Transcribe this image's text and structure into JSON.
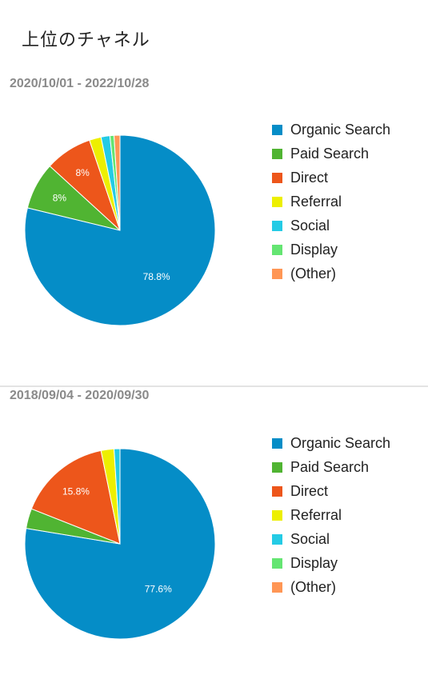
{
  "page_title": "上位のチャネル",
  "colors": {
    "organic_search": "#058dc7",
    "paid_search": "#50b432",
    "direct": "#ed561b",
    "referral": "#edef00",
    "social": "#24cbe5",
    "display": "#64e572",
    "other": "#ff9655"
  },
  "chart_data": [
    {
      "type": "pie",
      "title": "2020/10/01 - 2022/10/28",
      "legend": "right",
      "labels": [
        "Organic Search",
        "Paid Search",
        "Direct",
        "Referral",
        "Social",
        "Display",
        "(Other)"
      ],
      "values": [
        78.8,
        8,
        8,
        2,
        1.5,
        0.7,
        1
      ],
      "data_labels": [
        "78.8%",
        "8%",
        "8%",
        "",
        "",
        "",
        ""
      ]
    },
    {
      "type": "pie",
      "title": "2018/09/04 - 2020/09/30",
      "legend": "right",
      "labels": [
        "Organic Search",
        "Paid Search",
        "Direct",
        "Referral",
        "Social",
        "Display",
        "(Other)"
      ],
      "values": [
        77.6,
        3.4,
        15.8,
        2.2,
        1,
        0,
        0
      ],
      "data_labels": [
        "77.6%",
        "",
        "15.8%",
        "",
        "",
        "",
        ""
      ]
    }
  ]
}
